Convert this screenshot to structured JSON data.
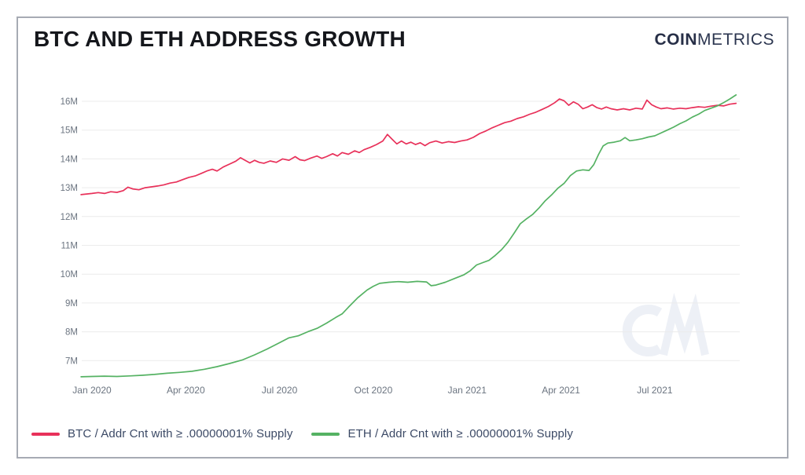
{
  "header": {
    "title": "BTC AND ETH ADDRESS GROWTH",
    "logo_bold": "COIN",
    "logo_light": "METRICS"
  },
  "watermark_text": "CM",
  "colors": {
    "btc": "#e8315a",
    "eth": "#55b263",
    "grid": "#ececec",
    "axis_text": "#6b7480",
    "legend_text": "#3c4a66",
    "watermark": "#edf0f6"
  },
  "chart_data": {
    "type": "line",
    "title": "BTC AND ETH ADDRESS GROWTH",
    "xlabel": "",
    "ylabel": "",
    "grid": "horizontal",
    "legend_position": "bottom-left",
    "x_unit": "months since Jan 2020",
    "xlim": [
      -0.5,
      20.75
    ],
    "ylim_millions": [
      6.3,
      16.5
    ],
    "x_ticks": [
      {
        "m": 0,
        "label": "Jan 2020"
      },
      {
        "m": 3,
        "label": "Apr 2020"
      },
      {
        "m": 6,
        "label": "Jul 2020"
      },
      {
        "m": 9,
        "label": "Oct 2020"
      },
      {
        "m": 12,
        "label": "Jan 2021"
      },
      {
        "m": 15,
        "label": "Apr 2021"
      },
      {
        "m": 18,
        "label": "Jul 2021"
      }
    ],
    "y_ticks": [
      {
        "v": 7,
        "label": "7M"
      },
      {
        "v": 8,
        "label": "8M"
      },
      {
        "v": 9,
        "label": "9M"
      },
      {
        "v": 10,
        "label": "10M"
      },
      {
        "v": 11,
        "label": "11M"
      },
      {
        "v": 12,
        "label": "12M"
      },
      {
        "v": 13,
        "label": "13M"
      },
      {
        "v": 14,
        "label": "14M"
      },
      {
        "v": 15,
        "label": "15M"
      },
      {
        "v": 16,
        "label": "16M"
      }
    ],
    "series": [
      {
        "key": "btc",
        "name": "BTC / Addr Cnt with ≥ .00000001% Supply",
        "color": "#e8315a",
        "units": "millions of addresses",
        "points": [
          [
            -0.35,
            12.76
          ],
          [
            0,
            12.8
          ],
          [
            0.2,
            12.83
          ],
          [
            0.4,
            12.8
          ],
          [
            0.6,
            12.86
          ],
          [
            0.8,
            12.84
          ],
          [
            1.0,
            12.9
          ],
          [
            1.15,
            13.02
          ],
          [
            1.3,
            12.96
          ],
          [
            1.5,
            12.93
          ],
          [
            1.7,
            13.0
          ],
          [
            1.9,
            13.03
          ],
          [
            2.1,
            13.06
          ],
          [
            2.3,
            13.1
          ],
          [
            2.5,
            13.16
          ],
          [
            2.7,
            13.2
          ],
          [
            2.9,
            13.28
          ],
          [
            3.1,
            13.36
          ],
          [
            3.3,
            13.41
          ],
          [
            3.5,
            13.5
          ],
          [
            3.7,
            13.59
          ],
          [
            3.85,
            13.64
          ],
          [
            4.0,
            13.58
          ],
          [
            4.2,
            13.72
          ],
          [
            4.4,
            13.82
          ],
          [
            4.6,
            13.92
          ],
          [
            4.75,
            14.04
          ],
          [
            4.9,
            13.95
          ],
          [
            5.05,
            13.86
          ],
          [
            5.2,
            13.95
          ],
          [
            5.35,
            13.88
          ],
          [
            5.5,
            13.85
          ],
          [
            5.7,
            13.93
          ],
          [
            5.9,
            13.88
          ],
          [
            6.1,
            14.0
          ],
          [
            6.3,
            13.95
          ],
          [
            6.5,
            14.08
          ],
          [
            6.65,
            13.97
          ],
          [
            6.8,
            13.94
          ],
          [
            7.0,
            14.03
          ],
          [
            7.2,
            14.1
          ],
          [
            7.35,
            14.02
          ],
          [
            7.5,
            14.08
          ],
          [
            7.7,
            14.18
          ],
          [
            7.85,
            14.1
          ],
          [
            8.0,
            14.22
          ],
          [
            8.2,
            14.16
          ],
          [
            8.4,
            14.28
          ],
          [
            8.55,
            14.22
          ],
          [
            8.7,
            14.32
          ],
          [
            8.9,
            14.4
          ],
          [
            9.1,
            14.5
          ],
          [
            9.3,
            14.62
          ],
          [
            9.45,
            14.85
          ],
          [
            9.6,
            14.68
          ],
          [
            9.75,
            14.52
          ],
          [
            9.9,
            14.62
          ],
          [
            10.05,
            14.52
          ],
          [
            10.2,
            14.58
          ],
          [
            10.35,
            14.5
          ],
          [
            10.5,
            14.56
          ],
          [
            10.65,
            14.46
          ],
          [
            10.8,
            14.56
          ],
          [
            11.0,
            14.62
          ],
          [
            11.2,
            14.55
          ],
          [
            11.4,
            14.6
          ],
          [
            11.6,
            14.57
          ],
          [
            11.8,
            14.62
          ],
          [
            12.0,
            14.66
          ],
          [
            12.2,
            14.75
          ],
          [
            12.4,
            14.88
          ],
          [
            12.6,
            14.97
          ],
          [
            12.8,
            15.08
          ],
          [
            13.0,
            15.17
          ],
          [
            13.2,
            15.26
          ],
          [
            13.4,
            15.31
          ],
          [
            13.6,
            15.4
          ],
          [
            13.8,
            15.46
          ],
          [
            14.0,
            15.55
          ],
          [
            14.2,
            15.62
          ],
          [
            14.4,
            15.72
          ],
          [
            14.6,
            15.82
          ],
          [
            14.8,
            15.95
          ],
          [
            14.95,
            16.08
          ],
          [
            15.1,
            16.02
          ],
          [
            15.25,
            15.86
          ],
          [
            15.4,
            15.98
          ],
          [
            15.55,
            15.9
          ],
          [
            15.7,
            15.74
          ],
          [
            15.85,
            15.8
          ],
          [
            16.0,
            15.88
          ],
          [
            16.15,
            15.78
          ],
          [
            16.3,
            15.73
          ],
          [
            16.45,
            15.8
          ],
          [
            16.6,
            15.74
          ],
          [
            16.8,
            15.7
          ],
          [
            17.0,
            15.74
          ],
          [
            17.2,
            15.7
          ],
          [
            17.4,
            15.76
          ],
          [
            17.6,
            15.73
          ],
          [
            17.75,
            16.04
          ],
          [
            17.9,
            15.88
          ],
          [
            18.05,
            15.8
          ],
          [
            18.2,
            15.74
          ],
          [
            18.4,
            15.77
          ],
          [
            18.6,
            15.73
          ],
          [
            18.8,
            15.76
          ],
          [
            19.0,
            15.74
          ],
          [
            19.2,
            15.78
          ],
          [
            19.4,
            15.81
          ],
          [
            19.6,
            15.79
          ],
          [
            19.8,
            15.83
          ],
          [
            20.0,
            15.86
          ],
          [
            20.2,
            15.84
          ],
          [
            20.4,
            15.9
          ],
          [
            20.6,
            15.93
          ]
        ]
      },
      {
        "key": "eth",
        "name": "ETH / Addr Cnt with ≥ .00000001% Supply",
        "color": "#55b263",
        "units": "millions of addresses",
        "points": [
          [
            -0.35,
            6.44
          ],
          [
            0,
            6.45
          ],
          [
            0.4,
            6.46
          ],
          [
            0.8,
            6.45
          ],
          [
            1.2,
            6.47
          ],
          [
            1.6,
            6.49
          ],
          [
            2.0,
            6.52
          ],
          [
            2.4,
            6.56
          ],
          [
            2.8,
            6.59
          ],
          [
            3.2,
            6.63
          ],
          [
            3.6,
            6.7
          ],
          [
            4.0,
            6.79
          ],
          [
            4.4,
            6.9
          ],
          [
            4.8,
            7.02
          ],
          [
            5.2,
            7.2
          ],
          [
            5.6,
            7.4
          ],
          [
            6.0,
            7.62
          ],
          [
            6.3,
            7.79
          ],
          [
            6.6,
            7.86
          ],
          [
            6.9,
            8.0
          ],
          [
            7.2,
            8.12
          ],
          [
            7.5,
            8.3
          ],
          [
            7.8,
            8.5
          ],
          [
            8.0,
            8.62
          ],
          [
            8.2,
            8.85
          ],
          [
            8.5,
            9.18
          ],
          [
            8.8,
            9.45
          ],
          [
            9.0,
            9.58
          ],
          [
            9.2,
            9.68
          ],
          [
            9.5,
            9.72
          ],
          [
            9.8,
            9.74
          ],
          [
            10.1,
            9.72
          ],
          [
            10.4,
            9.75
          ],
          [
            10.7,
            9.73
          ],
          [
            10.85,
            9.6
          ],
          [
            11.0,
            9.62
          ],
          [
            11.3,
            9.72
          ],
          [
            11.6,
            9.85
          ],
          [
            11.9,
            9.98
          ],
          [
            12.1,
            10.12
          ],
          [
            12.3,
            10.32
          ],
          [
            12.5,
            10.4
          ],
          [
            12.7,
            10.48
          ],
          [
            12.9,
            10.65
          ],
          [
            13.1,
            10.85
          ],
          [
            13.3,
            11.1
          ],
          [
            13.5,
            11.42
          ],
          [
            13.7,
            11.75
          ],
          [
            13.9,
            11.92
          ],
          [
            14.1,
            12.08
          ],
          [
            14.3,
            12.3
          ],
          [
            14.5,
            12.55
          ],
          [
            14.7,
            12.75
          ],
          [
            14.9,
            12.98
          ],
          [
            15.1,
            13.15
          ],
          [
            15.3,
            13.42
          ],
          [
            15.5,
            13.58
          ],
          [
            15.7,
            13.62
          ],
          [
            15.9,
            13.6
          ],
          [
            16.05,
            13.8
          ],
          [
            16.2,
            14.15
          ],
          [
            16.35,
            14.45
          ],
          [
            16.5,
            14.55
          ],
          [
            16.7,
            14.58
          ],
          [
            16.9,
            14.63
          ],
          [
            17.05,
            14.74
          ],
          [
            17.2,
            14.63
          ],
          [
            17.4,
            14.66
          ],
          [
            17.6,
            14.7
          ],
          [
            17.8,
            14.76
          ],
          [
            18.0,
            14.8
          ],
          [
            18.2,
            14.9
          ],
          [
            18.4,
            15.0
          ],
          [
            18.6,
            15.1
          ],
          [
            18.8,
            15.22
          ],
          [
            19.0,
            15.32
          ],
          [
            19.2,
            15.45
          ],
          [
            19.4,
            15.55
          ],
          [
            19.6,
            15.68
          ],
          [
            19.8,
            15.76
          ],
          [
            20.0,
            15.84
          ],
          [
            20.2,
            15.95
          ],
          [
            20.4,
            16.08
          ],
          [
            20.6,
            16.22
          ]
        ]
      }
    ]
  }
}
